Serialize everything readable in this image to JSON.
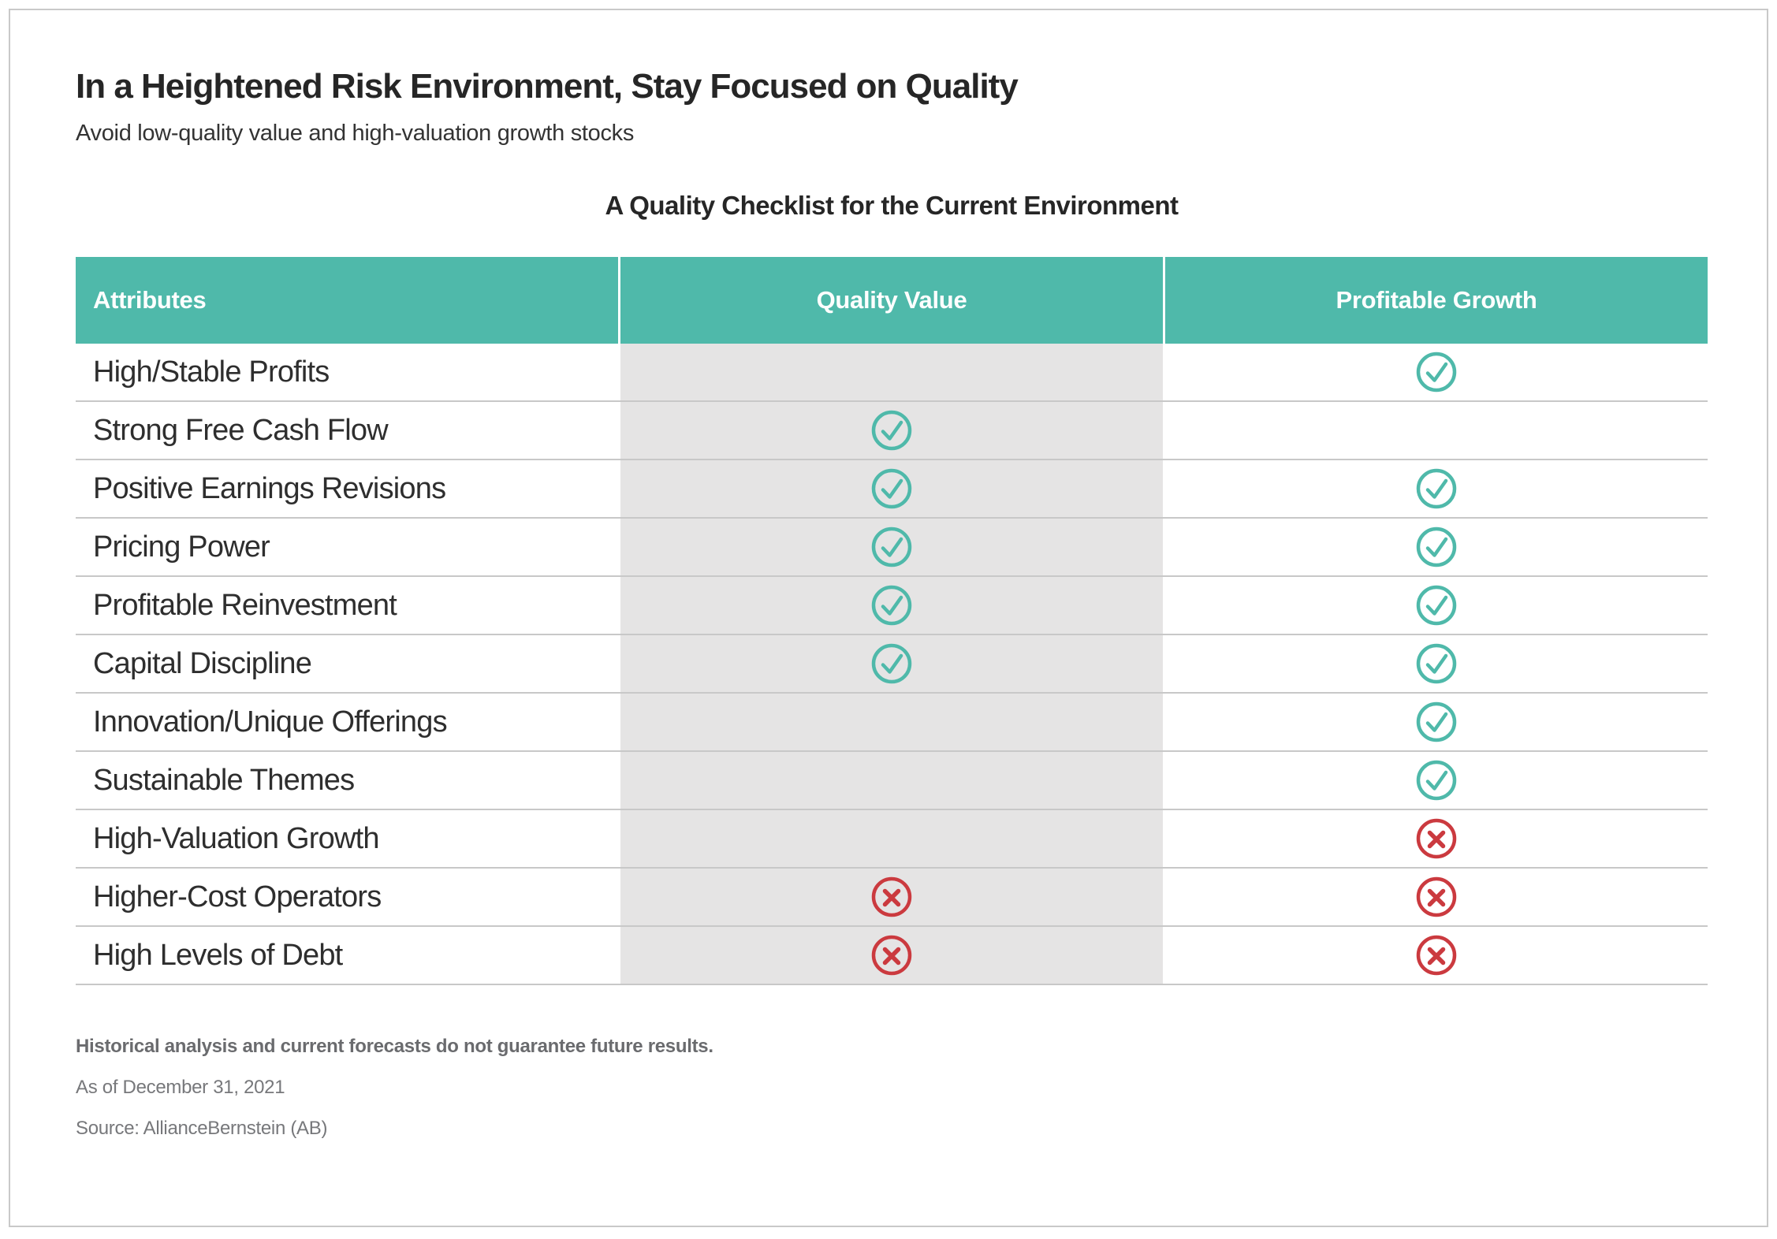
{
  "header": {
    "title": "In a Heightened Risk Environment, Stay Focused on Quality",
    "subtitle": "Avoid low-quality value and high-valuation growth stocks"
  },
  "chart_data": {
    "type": "table",
    "title": "A Quality Checklist for the Current Environment",
    "columns": [
      "Attributes",
      "Quality Value",
      "Profitable Growth"
    ],
    "rows": [
      {
        "attribute": "High/Stable Profits",
        "quality_value": "",
        "profitable_growth": "check"
      },
      {
        "attribute": "Strong Free Cash Flow",
        "quality_value": "check",
        "profitable_growth": ""
      },
      {
        "attribute": "Positive Earnings Revisions",
        "quality_value": "check",
        "profitable_growth": "check"
      },
      {
        "attribute": "Pricing Power",
        "quality_value": "check",
        "profitable_growth": "check"
      },
      {
        "attribute": "Profitable Reinvestment",
        "quality_value": "check",
        "profitable_growth": "check"
      },
      {
        "attribute": "Capital Discipline",
        "quality_value": "check",
        "profitable_growth": "check"
      },
      {
        "attribute": "Innovation/Unique Offerings",
        "quality_value": "",
        "profitable_growth": "check"
      },
      {
        "attribute": "Sustainable Themes",
        "quality_value": "",
        "profitable_growth": "check"
      },
      {
        "attribute": "High-Valuation Growth",
        "quality_value": "",
        "profitable_growth": "cross"
      },
      {
        "attribute": "Higher-Cost Operators",
        "quality_value": "cross",
        "profitable_growth": "cross"
      },
      {
        "attribute": "High Levels of Debt",
        "quality_value": "cross",
        "profitable_growth": "cross"
      }
    ]
  },
  "footer": {
    "disclaimer": "Historical analysis and current forecasts do not guarantee future results.",
    "as_of": "As of December 31, 2021",
    "source": "Source: AllianceBernstein (AB)"
  },
  "icons": {
    "check": "check-circle-icon",
    "cross": "x-circle-icon"
  },
  "colors": {
    "teal": "#4fb9aa",
    "red": "#cb3a3f",
    "column_gray": "#e5e4e4",
    "separator_gray": "#c8c8c8"
  }
}
